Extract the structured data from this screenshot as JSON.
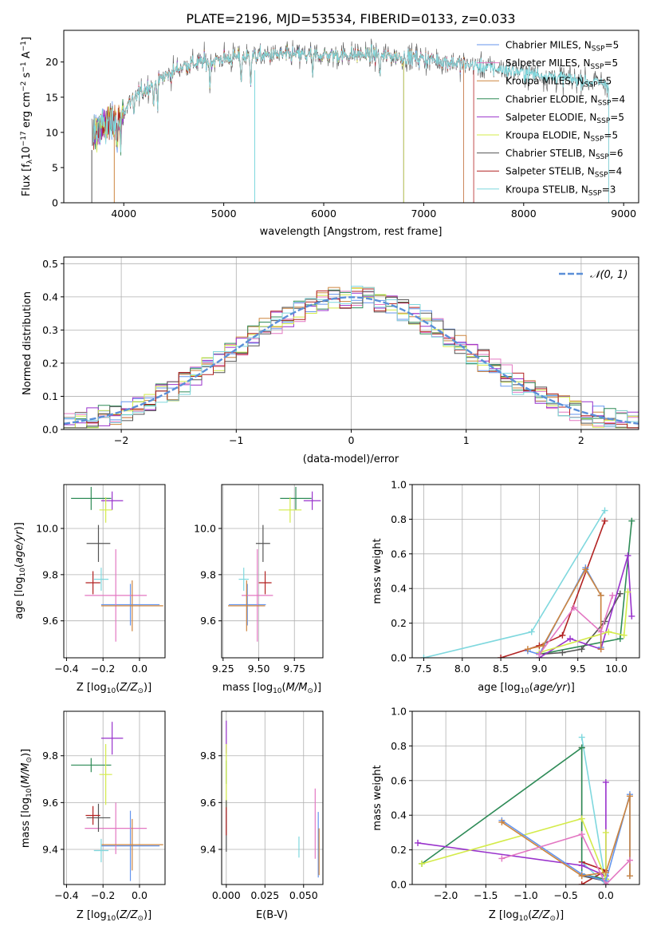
{
  "title": "PLATE=2196, MJD=53534, FIBERID=0133, z=0.033",
  "colors": {
    "chabrier_miles": "#6495ed",
    "salpeter_miles": "#e377c2",
    "kroupa_miles": "#cd853f",
    "chabrier_elodie": "#2e8b57",
    "salpeter_elodie": "#9932cc",
    "kroupa_elodie": "#d4eb4a",
    "chabrier_stelib": "#555555",
    "salpeter_stelib": "#b22222",
    "kroupa_stelib": "#7fd8de",
    "gaussian": "#5b8fd8"
  },
  "chart_data": [
    {
      "id": "spectrum",
      "type": "line",
      "xlabel": "wavelength [Angstrom, rest frame]",
      "ylabel": "Flux [f_λ 10^-17 erg cm^-2 s^-1 A^-1]",
      "xlim": [
        3400,
        9150
      ],
      "ylim": [
        0,
        24.5
      ],
      "xticks": [
        4000,
        5000,
        6000,
        7000,
        8000,
        9000
      ],
      "yticks": [
        0,
        5,
        10,
        15,
        20
      ],
      "grid": false,
      "legend_position": "top-right",
      "legend": [
        {
          "key": "chabrier_miles",
          "label": "Chabrier MILES, N",
          "sub": "SSP",
          "tail": "=5"
        },
        {
          "key": "salpeter_miles",
          "label": "Salpeter MILES, N",
          "sub": "SSP",
          "tail": "=5"
        },
        {
          "key": "kroupa_miles",
          "label": "Kroupa MILES, N",
          "sub": "SSP",
          "tail": "=5"
        },
        {
          "key": "chabrier_elodie",
          "label": "Chabrier ELODIE, N",
          "sub": "SSP",
          "tail": "=4"
        },
        {
          "key": "salpeter_elodie",
          "label": "Salpeter ELODIE, N",
          "sub": "SSP",
          "tail": "=5"
        },
        {
          "key": "kroupa_elodie",
          "label": "Kroupa ELODIE, N",
          "sub": "SSP",
          "tail": "=5"
        },
        {
          "key": "chabrier_stelib",
          "label": "Chabrier STELIB, N",
          "sub": "SSP",
          "tail": "=6"
        },
        {
          "key": "salpeter_stelib",
          "label": "Salpeter STELIB, N",
          "sub": "SSP",
          "tail": "=4"
        },
        {
          "key": "kroupa_stelib",
          "label": "Kroupa STELIB, N",
          "sub": "SSP",
          "tail": "=3"
        }
      ],
      "continuum": [
        [
          3680,
          9.5
        ],
        [
          3800,
          11
        ],
        [
          3950,
          12
        ],
        [
          4100,
          15
        ],
        [
          4300,
          17
        ],
        [
          4600,
          19.5
        ],
        [
          5000,
          20.5
        ],
        [
          5500,
          21
        ],
        [
          6000,
          21
        ],
        [
          6500,
          21
        ],
        [
          7000,
          20.5
        ],
        [
          7500,
          19.5
        ],
        [
          8000,
          18.5
        ],
        [
          8500,
          17.5
        ],
        [
          8800,
          17
        ]
      ],
      "series_ranges": {
        "chabrier_miles": [
          3700,
          7400
        ],
        "salpeter_miles": [
          3700,
          7400
        ],
        "kroupa_miles": [
          3700,
          7400
        ],
        "chabrier_elodie": [
          3700,
          6800
        ],
        "salpeter_elodie": [
          3700,
          6800
        ],
        "kroupa_elodie": [
          3700,
          6800
        ],
        "chabrier_stelib": [
          3680,
          8850
        ],
        "salpeter_stelib": [
          3700,
          7500
        ],
        "kroupa_stelib": [
          3700,
          8850
        ]
      }
    },
    {
      "id": "residuals",
      "type": "line",
      "xlabel": "(data-model)/error",
      "ylabel": "Normed distribution",
      "xlim": [
        -2.5,
        2.5
      ],
      "ylim": [
        0,
        0.52
      ],
      "xticks": [
        -2,
        -1,
        0,
        1,
        2
      ],
      "yticks": [
        0.0,
        0.1,
        0.2,
        0.3,
        0.4,
        0.5
      ],
      "grid": true,
      "legend_position": "top-right",
      "gaussian_label": "𝒩(0, 1)",
      "bin_width": 0.1
    },
    {
      "id": "age_vs_z",
      "type": "scatter",
      "xlabel": "Z [log10(Z/Z☉)]",
      "ylabel": "age [log10(age/yr)]",
      "xlim": [
        -0.415,
        0.14
      ],
      "ylim": [
        9.44,
        10.19
      ],
      "xticks": [
        -0.4,
        -0.2,
        0.0
      ],
      "yticks": [
        9.6,
        9.8,
        10.0
      ],
      "grid": true,
      "points": [
        {
          "key": "chabrier_miles",
          "x": -0.05,
          "y": 9.67,
          "xerr": 0.16,
          "yerr": 0.09
        },
        {
          "key": "salpeter_miles",
          "x": -0.13,
          "y": 9.71,
          "xerr": 0.17,
          "yerr": 0.2
        },
        {
          "key": "kroupa_miles",
          "x": -0.04,
          "y": 9.665,
          "xerr": 0.17,
          "yerr": 0.11
        },
        {
          "key": "chabrier_elodie",
          "x": -0.265,
          "y": 10.13,
          "xerr": 0.11,
          "yerr": 0.05
        },
        {
          "key": "salpeter_elodie",
          "x": -0.15,
          "y": 10.12,
          "xerr": 0.06,
          "yerr": 0.04
        },
        {
          "key": "kroupa_elodie",
          "x": -0.185,
          "y": 10.08,
          "xerr": 0.035,
          "yerr": 0.055
        },
        {
          "key": "chabrier_stelib",
          "x": -0.225,
          "y": 9.935,
          "xerr": 0.065,
          "yerr": 0.08
        },
        {
          "key": "salpeter_stelib",
          "x": -0.255,
          "y": 9.765,
          "xerr": 0.04,
          "yerr": 0.05
        },
        {
          "key": "kroupa_stelib",
          "x": -0.21,
          "y": 9.78,
          "xerr": 0.04,
          "yerr": 0.05
        }
      ]
    },
    {
      "id": "age_vs_mass",
      "type": "scatter",
      "xlabel": "mass [log10(M/M☉)]",
      "ylabel": "",
      "xlim": [
        9.24,
        9.95
      ],
      "ylim": [
        9.44,
        10.19
      ],
      "xticks": [
        9.25,
        9.5,
        9.75
      ],
      "yticks": [
        9.6,
        9.8,
        10.0
      ],
      "grid": true,
      "points": [
        {
          "key": "chabrier_miles",
          "x": 9.42,
          "y": 9.67,
          "xerr": 0.13,
          "yerr": 0.09
        },
        {
          "key": "salpeter_miles",
          "x": 9.49,
          "y": 9.71,
          "xerr": 0.11,
          "yerr": 0.2
        },
        {
          "key": "kroupa_miles",
          "x": 9.415,
          "y": 9.665,
          "xerr": 0.13,
          "yerr": 0.11
        },
        {
          "key": "chabrier_elodie",
          "x": 9.76,
          "y": 10.13,
          "xerr": 0.11,
          "yerr": 0.05
        },
        {
          "key": "salpeter_elodie",
          "x": 9.875,
          "y": 10.12,
          "xerr": 0.06,
          "yerr": 0.04
        },
        {
          "key": "kroupa_elodie",
          "x": 9.72,
          "y": 10.08,
          "xerr": 0.08,
          "yerr": 0.055
        },
        {
          "key": "chabrier_stelib",
          "x": 9.53,
          "y": 9.935,
          "xerr": 0.05,
          "yerr": 0.08
        },
        {
          "key": "salpeter_stelib",
          "x": 9.545,
          "y": 9.765,
          "xerr": 0.045,
          "yerr": 0.05
        },
        {
          "key": "kroupa_stelib",
          "x": 9.395,
          "y": 9.78,
          "xerr": 0.035,
          "yerr": 0.05
        }
      ]
    },
    {
      "id": "weight_vs_age",
      "type": "line",
      "xlabel": "age [log10(age/yr)]",
      "ylabel": "mass weight",
      "xlim": [
        7.35,
        10.3
      ],
      "ylim": [
        0,
        1.0
      ],
      "xticks": [
        7.5,
        8.0,
        8.5,
        9.0,
        9.5,
        10.0
      ],
      "yticks": [
        0.0,
        0.2,
        0.4,
        0.6,
        0.8,
        1.0
      ],
      "grid": true,
      "series": [
        {
          "key": "kroupa_stelib",
          "x": [
            7.5,
            8.9,
            9.85
          ],
          "y": [
            0.0,
            0.15,
            0.85
          ]
        },
        {
          "key": "salpeter_stelib",
          "x": [
            8.5,
            9.0,
            9.3,
            9.85
          ],
          "y": [
            0.0,
            0.07,
            0.13,
            0.79
          ]
        },
        {
          "key": "chabrier_elodie",
          "x": [
            9.0,
            10.05,
            10.2
          ],
          "y": [
            0.02,
            0.11,
            0.79
          ]
        },
        {
          "key": "chabrier_stelib",
          "x": [
            9.0,
            9.3,
            9.55,
            9.85,
            10.05
          ],
          "y": [
            0.02,
            0.03,
            0.05,
            0.21,
            0.37
          ]
        },
        {
          "key": "salpeter_elodie",
          "x": [
            9.0,
            9.4,
            9.8,
            10.15,
            10.2
          ],
          "y": [
            0.0,
            0.11,
            0.05,
            0.59,
            0.24
          ]
        },
        {
          "key": "kroupa_elodie",
          "x": [
            9.0,
            9.9,
            10.1,
            10.15
          ],
          "y": [
            0.03,
            0.15,
            0.13,
            0.38
          ]
        },
        {
          "key": "chabrier_miles",
          "x": [
            8.85,
            9.0,
            9.6,
            9.8,
            9.8
          ],
          "y": [
            0.04,
            0.02,
            0.52,
            0.36,
            0.06
          ]
        },
        {
          "key": "kroupa_miles",
          "x": [
            8.85,
            9.05,
            9.6,
            9.8,
            9.8
          ],
          "y": [
            0.05,
            0.07,
            0.51,
            0.36,
            0.05
          ]
        },
        {
          "key": "salpeter_miles",
          "x": [
            9.0,
            9.45,
            9.8,
            9.95
          ],
          "y": [
            0.02,
            0.29,
            0.15,
            0.36
          ]
        }
      ]
    },
    {
      "id": "mass_vs_z",
      "type": "scatter",
      "xlabel": "Z [log10(Z/Z☉)]",
      "ylabel": "mass [log10(M/M☉)]",
      "xlim": [
        -0.415,
        0.14
      ],
      "ylim": [
        9.25,
        9.99
      ],
      "xticks": [
        -0.4,
        -0.2,
        0.0
      ],
      "yticks": [
        9.4,
        9.6,
        9.8
      ],
      "grid": true,
      "points": [
        {
          "key": "chabrier_miles",
          "x": -0.05,
          "y": 9.415,
          "xerr": 0.16,
          "yerr": 0.15
        },
        {
          "key": "salpeter_miles",
          "x": -0.13,
          "y": 9.49,
          "xerr": 0.17,
          "yerr": 0.11
        },
        {
          "key": "kroupa_miles",
          "x": -0.04,
          "y": 9.42,
          "xerr": 0.17,
          "yerr": 0.11
        },
        {
          "key": "chabrier_elodie",
          "x": -0.265,
          "y": 9.76,
          "xerr": 0.11,
          "yerr": 0.03
        },
        {
          "key": "salpeter_elodie",
          "x": -0.15,
          "y": 9.875,
          "xerr": 0.06,
          "yerr": 0.07
        },
        {
          "key": "kroupa_elodie",
          "x": -0.185,
          "y": 9.72,
          "xerr": 0.035,
          "yerr": 0.13
        },
        {
          "key": "chabrier_stelib",
          "x": -0.225,
          "y": 9.535,
          "xerr": 0.065,
          "yerr": 0.06
        },
        {
          "key": "salpeter_stelib",
          "x": -0.255,
          "y": 9.545,
          "xerr": 0.04,
          "yerr": 0.04
        },
        {
          "key": "kroupa_stelib",
          "x": -0.21,
          "y": 9.395,
          "xerr": 0.04,
          "yerr": 0.05
        }
      ]
    },
    {
      "id": "mass_vs_ebv",
      "type": "scatter",
      "xlabel": "E(B-V)",
      "ylabel": "",
      "xlim": [
        -0.003,
        0.0625
      ],
      "ylim": [
        9.25,
        9.99
      ],
      "xticks": [
        0.0,
        0.025,
        0.05
      ],
      "xticklabels": [
        "0.000",
        "0.025",
        "0.050"
      ],
      "yticks": [
        9.4,
        9.6,
        9.8
      ],
      "grid": true,
      "points": [
        {
          "key": "chabrier_miles",
          "x": 0.0595,
          "y": 9.42,
          "xerr": 0,
          "yerr": 0.14
        },
        {
          "key": "salpeter_miles",
          "x": 0.0575,
          "y": 9.51,
          "xerr": 0,
          "yerr": 0.15
        },
        {
          "key": "kroupa_miles",
          "x": 0.06,
          "y": 9.39,
          "xerr": 0,
          "yerr": 0.1
        },
        {
          "key": "chabrier_elodie",
          "x": 0.0,
          "y": 9.73,
          "xerr": 0,
          "yerr": 0.05
        },
        {
          "key": "salpeter_elodie",
          "x": 0.0,
          "y": 9.88,
          "xerr": 0,
          "yerr": 0.07
        },
        {
          "key": "kroupa_elodie",
          "x": 0.0,
          "y": 9.71,
          "xerr": 0,
          "yerr": 0.14
        },
        {
          "key": "chabrier_stelib",
          "x": 0.0,
          "y": 9.5,
          "xerr": 0,
          "yerr": 0.11
        },
        {
          "key": "salpeter_stelib",
          "x": 0.0,
          "y": 9.52,
          "xerr": 0,
          "yerr": 0.06
        },
        {
          "key": "kroupa_stelib",
          "x": 0.047,
          "y": 9.41,
          "xerr": 0,
          "yerr": 0.045
        }
      ]
    },
    {
      "id": "weight_vs_z",
      "type": "line",
      "xlabel": "Z [log10(Z/Z☉)]",
      "ylabel": "mass weight",
      "xlim": [
        -2.42,
        0.42
      ],
      "ylim": [
        0,
        1.0
      ],
      "xticks": [
        -2.0,
        -1.5,
        -1.0,
        -0.5,
        0.0
      ],
      "yticks": [
        0.0,
        0.2,
        0.4,
        0.6,
        0.8,
        1.0
      ],
      "grid": true,
      "series": [
        {
          "key": "kroupa_stelib",
          "x": [
            -0.3,
            0.0,
            -0.3
          ],
          "y": [
            0.85,
            0.0,
            0.13
          ]
        },
        {
          "key": "salpeter_stelib",
          "x": [
            -0.3,
            -0.3,
            0.0,
            -0.3
          ],
          "y": [
            0.79,
            0.13,
            0.08,
            0.0
          ]
        },
        {
          "key": "chabrier_elodie",
          "x": [
            -2.3,
            -0.3,
            -0.3,
            0.0
          ],
          "y": [
            0.12,
            0.79,
            0.06,
            0.03
          ]
        },
        {
          "key": "chabrier_stelib",
          "x": [
            -0.3,
            0.0,
            0.0
          ],
          "y": [
            0.05,
            0.02,
            0.0
          ]
        },
        {
          "key": "salpeter_elodie",
          "x": [
            -2.35,
            -0.3,
            0.0,
            0.0
          ],
          "y": [
            0.24,
            0.11,
            0.05,
            0.59
          ]
        },
        {
          "key": "kroupa_elodie",
          "x": [
            -2.3,
            -0.3,
            0.0,
            0.0
          ],
          "y": [
            0.12,
            0.38,
            0.03,
            0.3
          ]
        },
        {
          "key": "chabrier_miles",
          "x": [
            -1.3,
            -0.3,
            0.0,
            0.3,
            0.3
          ],
          "y": [
            0.37,
            0.06,
            0.02,
            0.52,
            0.05
          ]
        },
        {
          "key": "kroupa_miles",
          "x": [
            -1.3,
            -0.3,
            0.0,
            0.3,
            0.3
          ],
          "y": [
            0.36,
            0.05,
            0.07,
            0.51,
            0.05
          ]
        },
        {
          "key": "salpeter_miles",
          "x": [
            -1.3,
            -0.3,
            0.0,
            0.3
          ],
          "y": [
            0.15,
            0.29,
            0.0,
            0.14
          ]
        }
      ]
    }
  ]
}
